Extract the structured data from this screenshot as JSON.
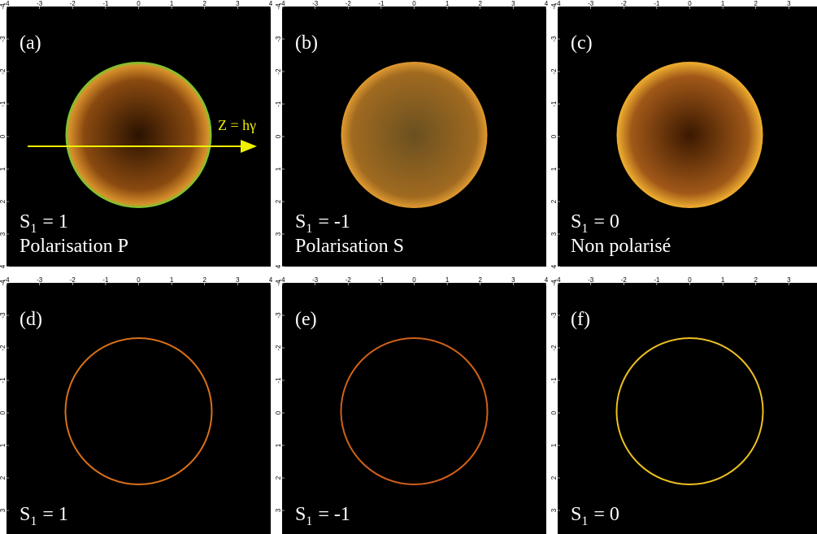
{
  "ticks": [
    -4,
    -3,
    -2,
    -1,
    0,
    1,
    2,
    3,
    4
  ],
  "panels": [
    {
      "label": "(a)",
      "symbol": "S",
      "subscript": "1",
      "equation": "= 1",
      "caption": "Polarisation P",
      "arrow_label": "Z = hγ"
    },
    {
      "label": "(b)",
      "symbol": "S",
      "subscript": "1",
      "equation": "= -1",
      "caption": "Polarisation S"
    },
    {
      "label": "(c)",
      "symbol": "S",
      "subscript": "1",
      "equation": "= 0",
      "caption": "Non polarisé"
    },
    {
      "label": "(d)",
      "symbol": "S",
      "subscript": "1",
      "equation": "= 1"
    },
    {
      "label": "(e)",
      "symbol": "S",
      "subscript": "1",
      "equation": "= -1"
    },
    {
      "label": "(f)",
      "symbol": "S",
      "subscript": "1",
      "equation": "= 0"
    }
  ]
}
